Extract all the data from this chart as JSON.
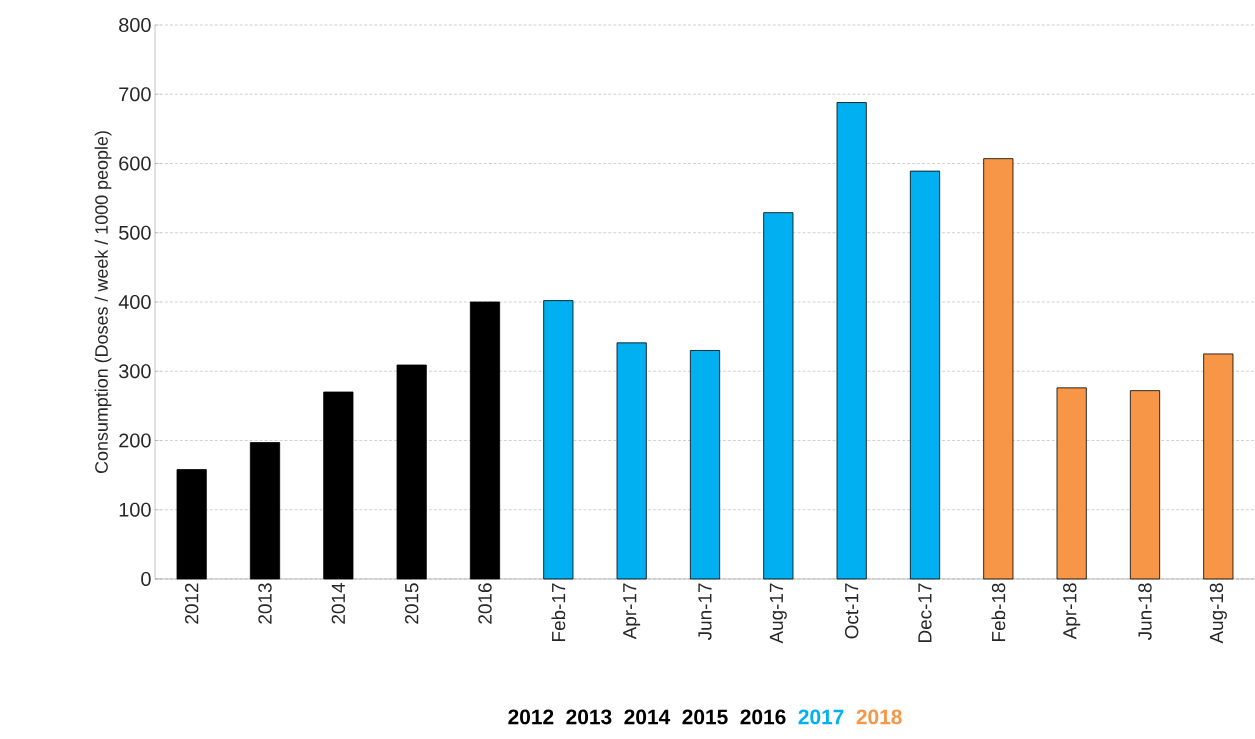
{
  "chart_data": {
    "type": "bar",
    "ylabel": "Consumption (Doses / week / 1000 people)",
    "categories": [
      "2012",
      "2013",
      "2014",
      "2015",
      "2016",
      "Feb-17",
      "Apr-17",
      "Jun-17",
      "Aug-17",
      "Oct-17",
      "Dec-17",
      "Feb-18",
      "Apr-18",
      "Jun-18",
      "Aug-18"
    ],
    "series": [
      {
        "color": "#000000",
        "values": [
          158,
          197,
          270,
          309,
          400,
          null,
          null,
          null,
          null,
          null,
          null,
          null,
          null,
          null,
          null
        ]
      },
      {
        "name": "2017",
        "color": "#00b0f0",
        "values": [
          null,
          null,
          null,
          null,
          null,
          402,
          341,
          330,
          529,
          688,
          589,
          null,
          null,
          null,
          null
        ]
      },
      {
        "name": "2018",
        "color": "#f79646",
        "values": [
          null,
          null,
          null,
          null,
          null,
          null,
          null,
          null,
          null,
          null,
          null,
          607,
          276,
          272,
          325
        ]
      }
    ],
    "annotations": [
      "2012",
      "2013",
      "2014",
      "2015",
      "2016"
    ],
    "ylim": [
      0,
      800
    ],
    "yticks": [
      0,
      100,
      200,
      300,
      400,
      500,
      600,
      700,
      800
    ],
    "grid": "y",
    "legend": "bottom"
  }
}
